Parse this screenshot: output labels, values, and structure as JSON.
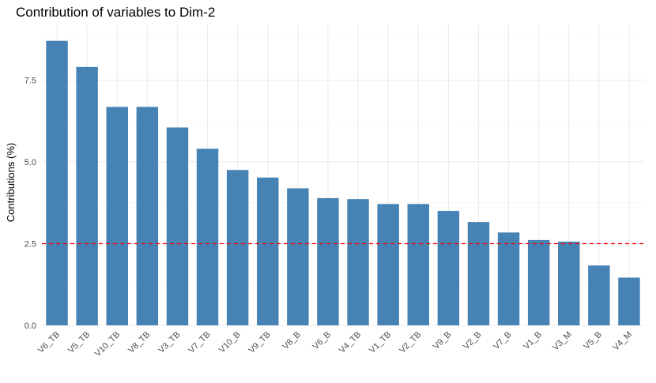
{
  "chart_data": {
    "type": "bar",
    "title": "Contribution of variables to Dim-2",
    "xlabel": "",
    "ylabel": "Contributions (%)",
    "categories": [
      "V6_TB",
      "V5_TB",
      "V10_TB",
      "V8_TB",
      "V3_TB",
      "V7_TB",
      "V10_B",
      "V9_TB",
      "V8_B",
      "V6_B",
      "V4_TB",
      "V1_TB",
      "V2_TB",
      "V9_B",
      "V2_B",
      "V7_B",
      "V1_B",
      "V3_M",
      "V5_B",
      "V4_M"
    ],
    "values": [
      8.7,
      7.9,
      6.68,
      6.68,
      6.05,
      5.4,
      4.75,
      4.52,
      4.19,
      3.89,
      3.86,
      3.71,
      3.71,
      3.5,
      3.16,
      2.84,
      2.61,
      2.56,
      1.83,
      1.46
    ],
    "ylim": [
      0,
      9.2
    ],
    "yticks": [
      0.0,
      2.5,
      5.0,
      7.5
    ],
    "ytick_labels": [
      "0.0",
      "2.5",
      "5.0",
      "7.5"
    ],
    "reference_line": 2.5,
    "grid": true,
    "colors": {
      "bar": "#4682B4",
      "reference_line": "#ff0000"
    }
  }
}
